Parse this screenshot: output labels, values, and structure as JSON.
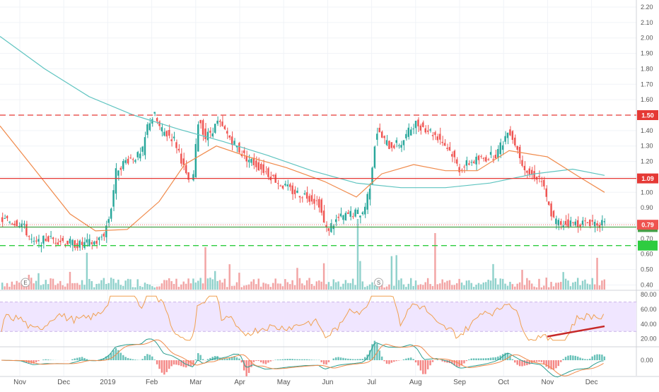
{
  "chart_data": {
    "type": "candlestick",
    "title": "",
    "x_tick_labels": [
      "Nov",
      "Dec",
      "2019",
      "Feb",
      "Mar",
      "Apr",
      "May",
      "Jun",
      "Jul",
      "Aug",
      "Sep",
      "Oct",
      "Nov",
      "Dec"
    ],
    "y_tick_labels": [
      "2.20",
      "2.10",
      "2.00",
      "1.90",
      "1.80",
      "1.70",
      "1.60",
      "1.50",
      "1.40",
      "1.30",
      "1.20",
      "1.10",
      "1.00",
      "0.90",
      "0.80",
      "0.70",
      "0.60",
      "0.50",
      "0.40"
    ],
    "ylim": [
      0.37,
      2.2
    ],
    "last_price": "0.79",
    "horizontal_levels": [
      {
        "label": "1.50",
        "value": 1.5,
        "style": "dashed",
        "color": "#e53935"
      },
      {
        "label": "1.09",
        "value": 1.09,
        "style": "solid",
        "color": "#e53935"
      },
      {
        "label": "",
        "value": 0.775,
        "style": "solid",
        "color": "#43a047"
      },
      {
        "label": "",
        "value": 0.655,
        "style": "dashed",
        "color": "#2ecc40"
      }
    ],
    "moving_averages": [
      {
        "color": "#5fc4c0",
        "points": [
          [
            0,
            2.01
          ],
          [
            0.07,
            1.8
          ],
          [
            0.14,
            1.62
          ],
          [
            0.21,
            1.5
          ],
          [
            0.28,
            1.41
          ],
          [
            0.35,
            1.33
          ],
          [
            0.42,
            1.24
          ],
          [
            0.49,
            1.14
          ],
          [
            0.56,
            1.06
          ],
          [
            0.63,
            1.03
          ],
          [
            0.7,
            1.03
          ],
          [
            0.77,
            1.06
          ],
          [
            0.84,
            1.12
          ],
          [
            0.9,
            1.15
          ],
          [
            0.95,
            1.11
          ]
        ]
      },
      {
        "color": "#f08a4b",
        "points": [
          [
            0,
            1.43
          ],
          [
            0.06,
            1.12
          ],
          [
            0.11,
            0.86
          ],
          [
            0.15,
            0.75
          ],
          [
            0.2,
            0.76
          ],
          [
            0.25,
            0.94
          ],
          [
            0.29,
            1.18
          ],
          [
            0.34,
            1.3
          ],
          [
            0.39,
            1.23
          ],
          [
            0.45,
            1.16
          ],
          [
            0.51,
            1.07
          ],
          [
            0.56,
            0.97
          ],
          [
            0.6,
            1.12
          ],
          [
            0.65,
            1.18
          ],
          [
            0.7,
            1.14
          ],
          [
            0.75,
            1.14
          ],
          [
            0.8,
            1.27
          ],
          [
            0.86,
            1.23
          ],
          [
            0.91,
            1.1
          ],
          [
            0.95,
            1.0
          ]
        ]
      }
    ],
    "price_path": [
      [
        0,
        0.82
      ],
      [
        0.03,
        0.8
      ],
      [
        0.05,
        0.66
      ],
      [
        0.07,
        0.7
      ],
      [
        0.09,
        0.69
      ],
      [
        0.12,
        0.66
      ],
      [
        0.15,
        0.68
      ],
      [
        0.16,
        0.73
      ],
      [
        0.17,
        0.86
      ],
      [
        0.18,
        1.15
      ],
      [
        0.2,
        1.22
      ],
      [
        0.22,
        1.24
      ],
      [
        0.23,
        1.45
      ],
      [
        0.24,
        1.5
      ],
      [
        0.25,
        1.4
      ],
      [
        0.27,
        1.35
      ],
      [
        0.28,
        1.25
      ],
      [
        0.29,
        1.1
      ],
      [
        0.3,
        1.05
      ],
      [
        0.31,
        1.5
      ],
      [
        0.32,
        1.35
      ],
      [
        0.34,
        1.45
      ],
      [
        0.36,
        1.35
      ],
      [
        0.38,
        1.24
      ],
      [
        0.4,
        1.18
      ],
      [
        0.42,
        1.12
      ],
      [
        0.44,
        1.05
      ],
      [
        0.46,
        1.0
      ],
      [
        0.48,
        0.98
      ],
      [
        0.5,
        0.93
      ],
      [
        0.51,
        0.75
      ],
      [
        0.53,
        0.83
      ],
      [
        0.55,
        0.86
      ],
      [
        0.57,
        0.87
      ],
      [
        0.58,
        1.05
      ],
      [
        0.59,
        1.4
      ],
      [
        0.61,
        1.3
      ],
      [
        0.63,
        1.32
      ],
      [
        0.65,
        1.45
      ],
      [
        0.67,
        1.41
      ],
      [
        0.69,
        1.35
      ],
      [
        0.71,
        1.25
      ],
      [
        0.72,
        1.15
      ],
      [
        0.74,
        1.2
      ],
      [
        0.76,
        1.22
      ],
      [
        0.78,
        1.25
      ],
      [
        0.8,
        1.41
      ],
      [
        0.82,
        1.2
      ],
      [
        0.83,
        1.12
      ],
      [
        0.85,
        1.09
      ],
      [
        0.86,
        0.93
      ],
      [
        0.87,
        0.82
      ],
      [
        0.88,
        0.8
      ],
      [
        0.9,
        0.8
      ],
      [
        0.92,
        0.8
      ],
      [
        0.93,
        0.81
      ],
      [
        0.95,
        0.79
      ]
    ],
    "rsi": {
      "y_tick_labels": [
        "80.00",
        "60.00",
        "40.00",
        "20.00"
      ],
      "ylim": [
        10,
        85
      ],
      "band": [
        30,
        70
      ],
      "color": "#f0a050",
      "trendline": {
        "color": "#c62828",
        "from": [
          0.86,
          23
        ],
        "to": [
          0.95,
          37
        ]
      }
    },
    "macd": {
      "y_tick_labels": [
        "0.00"
      ],
      "line_color": "#2a9d8f",
      "signal_color": "#f08a4b"
    },
    "event_markers": [
      {
        "label": "E",
        "x": 0.04
      },
      {
        "label": "S",
        "x": 0.595
      }
    ]
  }
}
